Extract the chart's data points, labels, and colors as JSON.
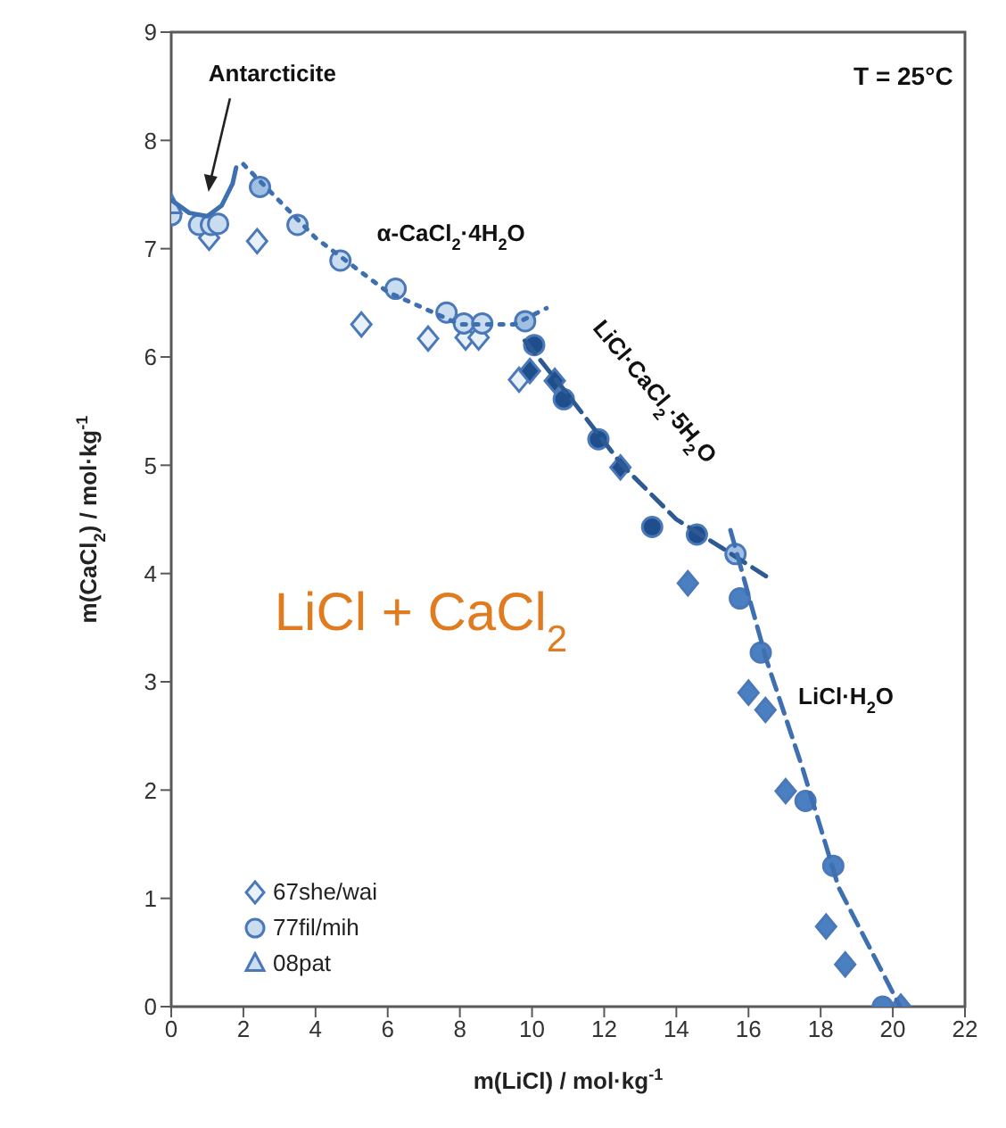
{
  "chart_data": {
    "type": "scatter",
    "xlabel": "m(LiCl) / mol·kg$^{-1}$",
    "ylabel": "m(CaCl$_{2}$) / mol·kg$^{-1}$",
    "xlim": [
      0,
      22
    ],
    "xticks": [
      0,
      2,
      4,
      6,
      8,
      10,
      12,
      14,
      16,
      18,
      20,
      22
    ],
    "ylim": [
      0,
      9
    ],
    "yticks": [
      0,
      1,
      2,
      3,
      4,
      5,
      6,
      7,
      8,
      9
    ],
    "legend": "bottom left",
    "series": [
      {
        "name": "67she/wai",
        "marker": "diamond",
        "color": "#4a78b8",
        "x": [
          1.05,
          2.38,
          5.27,
          7.12,
          8.16,
          8.52,
          9.64,
          9.94,
          10.63,
          12.45,
          14.32,
          16.0,
          16.47,
          17.03,
          18.15,
          18.68,
          20.22
        ],
        "values": [
          7.1,
          7.07,
          6.3,
          6.17,
          6.18,
          6.18,
          5.79,
          5.87,
          5.78,
          4.98,
          3.91,
          2.9,
          2.74,
          1.99,
          0.74,
          0.39,
          0
        ],
        "colors": [
          "#e8f0fa",
          "#e8f0fa",
          "#e8f0fa",
          "#e8f0fa",
          "#e8f0fa",
          "#e8f0fa",
          "#e8f0fa",
          "#1f4e8c",
          "#1f4e8c",
          "#1f4e8c",
          "#4a7fc1",
          "#4a7fc1",
          "#4a7fc1",
          "#4a7fc1",
          "#4a7fc1",
          "#4a7fc1",
          "#4a7fc1"
        ]
      },
      {
        "name": "77fil/mih",
        "marker": "circle",
        "color": "#4a78b8",
        "x": [
          0,
          0.77,
          1.1,
          1.3,
          2.46,
          3.5,
          4.69,
          6.22,
          7.63,
          8.11,
          8.62,
          9.81,
          10.06,
          10.88,
          11.84,
          13.33,
          14.57,
          15.64,
          15.76,
          16.34,
          17.58,
          18.35,
          19.72
        ],
        "values": [
          7.31,
          7.22,
          7.22,
          7.23,
          7.57,
          7.22,
          6.89,
          6.63,
          6.41,
          6.31,
          6.31,
          6.33,
          6.11,
          5.61,
          5.24,
          4.43,
          4.36,
          4.18,
          3.77,
          3.27,
          1.9,
          1.3,
          0
        ],
        "colors": [
          "#c9dcf0",
          "#c9dcf0",
          "#c9dcf0",
          "#c9dcf0",
          "#9fbfe3",
          "#c9dcf0",
          "#c9dcf0",
          "#c9dcf0",
          "#c9dcf0",
          "#c9dcf0",
          "#c9dcf0",
          "#9fbfe3",
          "#1f4e8c",
          "#1f4e8c",
          "#1f4e8c",
          "#1f4e8c",
          "#1f4e8c",
          "#9fbfe3",
          "#4a7fc1",
          "#4a7fc1",
          "#4a7fc1",
          "#4a7fc1",
          "#4a7fc1"
        ]
      },
      {
        "name": "08pat",
        "marker": "triangle",
        "color": "#4a78b8",
        "x": [
          0
        ],
        "values": [
          7.4
        ],
        "colors": [
          "#c9dcf0"
        ]
      },
      {
        "type": "line",
        "line_style": "solid",
        "color": "#3e6fb0",
        "x": [
          0,
          0.5,
          1.0,
          1.4,
          1.7,
          1.8
        ],
        "values": [
          7.45,
          7.33,
          7.3,
          7.4,
          7.6,
          7.75
        ]
      },
      {
        "type": "line",
        "line_style": "dotted",
        "color": "#3e6fb0",
        "x": [
          2.0,
          4.0,
          6.0,
          8.0,
          9.5,
          10.4
        ],
        "values": [
          7.78,
          7.1,
          6.6,
          6.3,
          6.3,
          6.45
        ]
      },
      {
        "type": "line",
        "line_style": "dashed",
        "color": "#2e5a94",
        "x": [
          9.8,
          11.0,
          12.5,
          14.0,
          15.2,
          16.6
        ],
        "values": [
          6.15,
          5.65,
          5.0,
          4.5,
          4.25,
          3.95
        ]
      },
      {
        "type": "line",
        "line_style": "dashed",
        "color": "#3e6fb0",
        "x": [
          15.5,
          16.5,
          17.5,
          18.5,
          20.2
        ],
        "values": [
          4.4,
          3.2,
          2.2,
          1.1,
          0
        ]
      }
    ],
    "annotations": [
      "Antarcticite",
      "α-CaCl$_{2}$·4H$_{2}$O",
      "LiCl·CaCl$_{2}$·5H$_{2}$O",
      "LiCl·H$_{2}$O",
      "T = 25°C",
      "LiCl + CaCl$_{2}$"
    ]
  }
}
